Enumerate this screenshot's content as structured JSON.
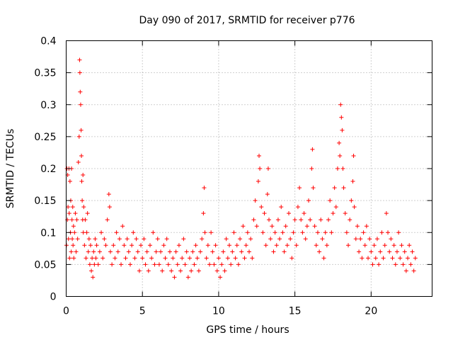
{
  "chart_data": {
    "type": "scatter",
    "title": "Day 090 of 2017, SRMTID for receiver p776",
    "xlabel": "GPS time / hours",
    "ylabel": "SRMTID / TECUs",
    "xlim": [
      0,
      24
    ],
    "ylim": [
      0,
      0.4
    ],
    "grid": true,
    "marker": "plus",
    "color": "#ff0000",
    "x_ticks": [
      {
        "value": 0,
        "label": "0"
      },
      {
        "value": 5,
        "label": "5"
      },
      {
        "value": 10,
        "label": "10"
      },
      {
        "value": 15,
        "label": "15"
      },
      {
        "value": 20,
        "label": "20"
      }
    ],
    "y_ticks": [
      {
        "value": 0,
        "label": "0"
      },
      {
        "value": 0.05,
        "label": "0.05"
      },
      {
        "value": 0.1,
        "label": "0.1"
      },
      {
        "value": 0.15,
        "label": "0.15"
      },
      {
        "value": 0.2,
        "label": "0.2"
      },
      {
        "value": 0.25,
        "label": "0.25"
      },
      {
        "value": 0.3,
        "label": "0.3"
      },
      {
        "value": 0.35,
        "label": "0.35"
      },
      {
        "value": 0.4,
        "label": "0.4"
      }
    ],
    "series": [
      {
        "name": "SRMTID",
        "points": [
          [
            0.02,
            0.08
          ],
          [
            0.05,
            0.2
          ],
          [
            0.08,
            0.12
          ],
          [
            0.1,
            0.19
          ],
          [
            0.12,
            0.14
          ],
          [
            0.15,
            0.09
          ],
          [
            0.18,
            0.2
          ],
          [
            0.2,
            0.13
          ],
          [
            0.22,
            0.06
          ],
          [
            0.25,
            0.18
          ],
          [
            0.28,
            0.1
          ],
          [
            0.3,
            0.15
          ],
          [
            0.33,
            0.07
          ],
          [
            0.35,
            0.2
          ],
          [
            0.38,
            0.12
          ],
          [
            0.4,
            0.09
          ],
          [
            0.43,
            0.14
          ],
          [
            0.45,
            0.08
          ],
          [
            0.48,
            0.11
          ],
          [
            0.5,
            0.06
          ],
          [
            0.55,
            0.1
          ],
          [
            0.6,
            0.13
          ],
          [
            0.65,
            0.07
          ],
          [
            0.7,
            0.12
          ],
          [
            0.75,
            0.09
          ],
          [
            0.8,
            0.21
          ],
          [
            0.85,
            0.25
          ],
          [
            0.88,
            0.37
          ],
          [
            0.9,
            0.35
          ],
          [
            0.92,
            0.32
          ],
          [
            0.95,
            0.3
          ],
          [
            0.98,
            0.26
          ],
          [
            1.0,
            0.22
          ],
          [
            1.02,
            0.18
          ],
          [
            1.05,
            0.15
          ],
          [
            1.08,
            0.12
          ],
          [
            1.1,
            0.19
          ],
          [
            1.12,
            0.1
          ],
          [
            1.15,
            0.14
          ],
          [
            1.2,
            0.08
          ],
          [
            1.25,
            0.12
          ],
          [
            1.3,
            0.06
          ],
          [
            1.35,
            0.1
          ],
          [
            1.4,
            0.13
          ],
          [
            1.45,
            0.07
          ],
          [
            1.5,
            0.09
          ],
          [
            1.55,
            0.05
          ],
          [
            1.6,
            0.08
          ],
          [
            1.65,
            0.04
          ],
          [
            1.7,
            0.06
          ],
          [
            1.75,
            0.03
          ],
          [
            1.8,
            0.07
          ],
          [
            1.85,
            0.05
          ],
          [
            1.9,
            0.09
          ],
          [
            1.95,
            0.06
          ],
          [
            2.0,
            0.08
          ],
          [
            2.1,
            0.05
          ],
          [
            2.2,
            0.07
          ],
          [
            2.3,
            0.1
          ],
          [
            2.4,
            0.06
          ],
          [
            2.5,
            0.09
          ],
          [
            2.6,
            0.08
          ],
          [
            2.7,
            0.12
          ],
          [
            2.8,
            0.16
          ],
          [
            2.85,
            0.14
          ],
          [
            2.9,
            0.07
          ],
          [
            3.0,
            0.05
          ],
          [
            3.1,
            0.08
          ],
          [
            3.2,
            0.06
          ],
          [
            3.3,
            0.1
          ],
          [
            3.4,
            0.07
          ],
          [
            3.5,
            0.09
          ],
          [
            3.6,
            0.05
          ],
          [
            3.7,
            0.11
          ],
          [
            3.8,
            0.08
          ],
          [
            3.9,
            0.06
          ],
          [
            4.0,
            0.09
          ],
          [
            4.1,
            0.07
          ],
          [
            4.2,
            0.05
          ],
          [
            4.3,
            0.08
          ],
          [
            4.4,
            0.1
          ],
          [
            4.5,
            0.06
          ],
          [
            4.6,
            0.09
          ],
          [
            4.7,
            0.07
          ],
          [
            4.8,
            0.04
          ],
          [
            4.9,
            0.08
          ],
          [
            5.0,
            0.06
          ],
          [
            5.1,
            0.09
          ],
          [
            5.2,
            0.05
          ],
          [
            5.3,
            0.07
          ],
          [
            5.4,
            0.04
          ],
          [
            5.5,
            0.08
          ],
          [
            5.6,
            0.06
          ],
          [
            5.7,
            0.1
          ],
          [
            5.8,
            0.05
          ],
          [
            5.9,
            0.07
          ],
          [
            6.0,
            0.09
          ],
          [
            6.1,
            0.05
          ],
          [
            6.2,
            0.07
          ],
          [
            6.3,
            0.04
          ],
          [
            6.4,
            0.08
          ],
          [
            6.5,
            0.06
          ],
          [
            6.6,
            0.09
          ],
          [
            6.7,
            0.05
          ],
          [
            6.8,
            0.07
          ],
          [
            6.9,
            0.04
          ],
          [
            7.0,
            0.06
          ],
          [
            7.1,
            0.03
          ],
          [
            7.2,
            0.07
          ],
          [
            7.3,
            0.05
          ],
          [
            7.4,
            0.08
          ],
          [
            7.5,
            0.04
          ],
          [
            7.6,
            0.06
          ],
          [
            7.7,
            0.09
          ],
          [
            7.8,
            0.05
          ],
          [
            7.9,
            0.07
          ],
          [
            8.0,
            0.03
          ],
          [
            8.1,
            0.06
          ],
          [
            8.2,
            0.04
          ],
          [
            8.3,
            0.07
          ],
          [
            8.4,
            0.05
          ],
          [
            8.5,
            0.08
          ],
          [
            8.6,
            0.06
          ],
          [
            8.7,
            0.04
          ],
          [
            8.8,
            0.07
          ],
          [
            8.9,
            0.09
          ],
          [
            9.0,
            0.13
          ],
          [
            9.05,
            0.17
          ],
          [
            9.1,
            0.1
          ],
          [
            9.2,
            0.06
          ],
          [
            9.3,
            0.08
          ],
          [
            9.4,
            0.05
          ],
          [
            9.5,
            0.1
          ],
          [
            9.6,
            0.07
          ],
          [
            9.7,
            0.05
          ],
          [
            9.8,
            0.08
          ],
          [
            9.9,
            0.04
          ],
          [
            10.0,
            0.06
          ],
          [
            10.1,
            0.03
          ],
          [
            10.2,
            0.05
          ],
          [
            10.3,
            0.07
          ],
          [
            10.4,
            0.04
          ],
          [
            10.5,
            0.09
          ],
          [
            10.6,
            0.06
          ],
          [
            10.7,
            0.08
          ],
          [
            10.8,
            0.05
          ],
          [
            10.9,
            0.07
          ],
          [
            11.0,
            0.1
          ],
          [
            11.1,
            0.06
          ],
          [
            11.2,
            0.08
          ],
          [
            11.3,
            0.05
          ],
          [
            11.4,
            0.09
          ],
          [
            11.5,
            0.07
          ],
          [
            11.6,
            0.11
          ],
          [
            11.7,
            0.06
          ],
          [
            11.8,
            0.08
          ],
          [
            11.9,
            0.1
          ],
          [
            12.0,
            0.07
          ],
          [
            12.1,
            0.09
          ],
          [
            12.2,
            0.06
          ],
          [
            12.3,
            0.12
          ],
          [
            12.4,
            0.15
          ],
          [
            12.5,
            0.11
          ],
          [
            12.6,
            0.18
          ],
          [
            12.65,
            0.22
          ],
          [
            12.7,
            0.2
          ],
          [
            12.8,
            0.14
          ],
          [
            12.9,
            0.1
          ],
          [
            13.0,
            0.13
          ],
          [
            13.1,
            0.08
          ],
          [
            13.2,
            0.16
          ],
          [
            13.25,
            0.2
          ],
          [
            13.3,
            0.12
          ],
          [
            13.4,
            0.09
          ],
          [
            13.5,
            0.11
          ],
          [
            13.6,
            0.07
          ],
          [
            13.7,
            0.1
          ],
          [
            13.8,
            0.08
          ],
          [
            13.9,
            0.12
          ],
          [
            14.0,
            0.09
          ],
          [
            14.1,
            0.14
          ],
          [
            14.2,
            0.1
          ],
          [
            14.3,
            0.07
          ],
          [
            14.4,
            0.11
          ],
          [
            14.5,
            0.08
          ],
          [
            14.6,
            0.13
          ],
          [
            14.7,
            0.09
          ],
          [
            14.8,
            0.06
          ],
          [
            14.9,
            0.1
          ],
          [
            15.0,
            0.12
          ],
          [
            15.1,
            0.08
          ],
          [
            15.2,
            0.14
          ],
          [
            15.3,
            0.17
          ],
          [
            15.4,
            0.12
          ],
          [
            15.5,
            0.1
          ],
          [
            15.6,
            0.13
          ],
          [
            15.7,
            0.09
          ],
          [
            15.8,
            0.11
          ],
          [
            15.9,
            0.15
          ],
          [
            16.0,
            0.12
          ],
          [
            16.1,
            0.2
          ],
          [
            16.15,
            0.23
          ],
          [
            16.2,
            0.17
          ],
          [
            16.3,
            0.11
          ],
          [
            16.4,
            0.08
          ],
          [
            16.5,
            0.1
          ],
          [
            16.6,
            0.07
          ],
          [
            16.7,
            0.12
          ],
          [
            16.8,
            0.09
          ],
          [
            16.9,
            0.06
          ],
          [
            17.0,
            0.1
          ],
          [
            17.1,
            0.08
          ],
          [
            17.2,
            0.12
          ],
          [
            17.3,
            0.15
          ],
          [
            17.4,
            0.1
          ],
          [
            17.5,
            0.13
          ],
          [
            17.6,
            0.17
          ],
          [
            17.7,
            0.14
          ],
          [
            17.8,
            0.2
          ],
          [
            17.9,
            0.24
          ],
          [
            17.95,
            0.22
          ],
          [
            18.0,
            0.3
          ],
          [
            18.05,
            0.28
          ],
          [
            18.1,
            0.26
          ],
          [
            18.15,
            0.2
          ],
          [
            18.2,
            0.17
          ],
          [
            18.3,
            0.13
          ],
          [
            18.4,
            0.1
          ],
          [
            18.5,
            0.08
          ],
          [
            18.6,
            0.12
          ],
          [
            18.7,
            0.15
          ],
          [
            18.8,
            0.18
          ],
          [
            18.85,
            0.22
          ],
          [
            18.9,
            0.14
          ],
          [
            19.0,
            0.09
          ],
          [
            19.1,
            0.11
          ],
          [
            19.2,
            0.07
          ],
          [
            19.3,
            0.09
          ],
          [
            19.4,
            0.06
          ],
          [
            19.5,
            0.1
          ],
          [
            19.6,
            0.08
          ],
          [
            19.7,
            0.11
          ],
          [
            19.8,
            0.06
          ],
          [
            19.9,
            0.09
          ],
          [
            20.0,
            0.07
          ],
          [
            20.1,
            0.05
          ],
          [
            20.2,
            0.08
          ],
          [
            20.3,
            0.06
          ],
          [
            20.4,
            0.09
          ],
          [
            20.5,
            0.05
          ],
          [
            20.6,
            0.07
          ],
          [
            20.7,
            0.1
          ],
          [
            20.8,
            0.06
          ],
          [
            20.9,
            0.08
          ],
          [
            21.0,
            0.13
          ],
          [
            21.1,
            0.1
          ],
          [
            21.2,
            0.07
          ],
          [
            21.3,
            0.09
          ],
          [
            21.4,
            0.06
          ],
          [
            21.5,
            0.08
          ],
          [
            21.6,
            0.05
          ],
          [
            21.7,
            0.07
          ],
          [
            21.8,
            0.1
          ],
          [
            21.9,
            0.06
          ],
          [
            22.0,
            0.08
          ],
          [
            22.1,
            0.05
          ],
          [
            22.2,
            0.07
          ],
          [
            22.3,
            0.04
          ],
          [
            22.4,
            0.06
          ],
          [
            22.5,
            0.08
          ],
          [
            22.6,
            0.05
          ],
          [
            22.7,
            0.07
          ],
          [
            22.8,
            0.04
          ],
          [
            22.9,
            0.06
          ]
        ]
      }
    ]
  }
}
